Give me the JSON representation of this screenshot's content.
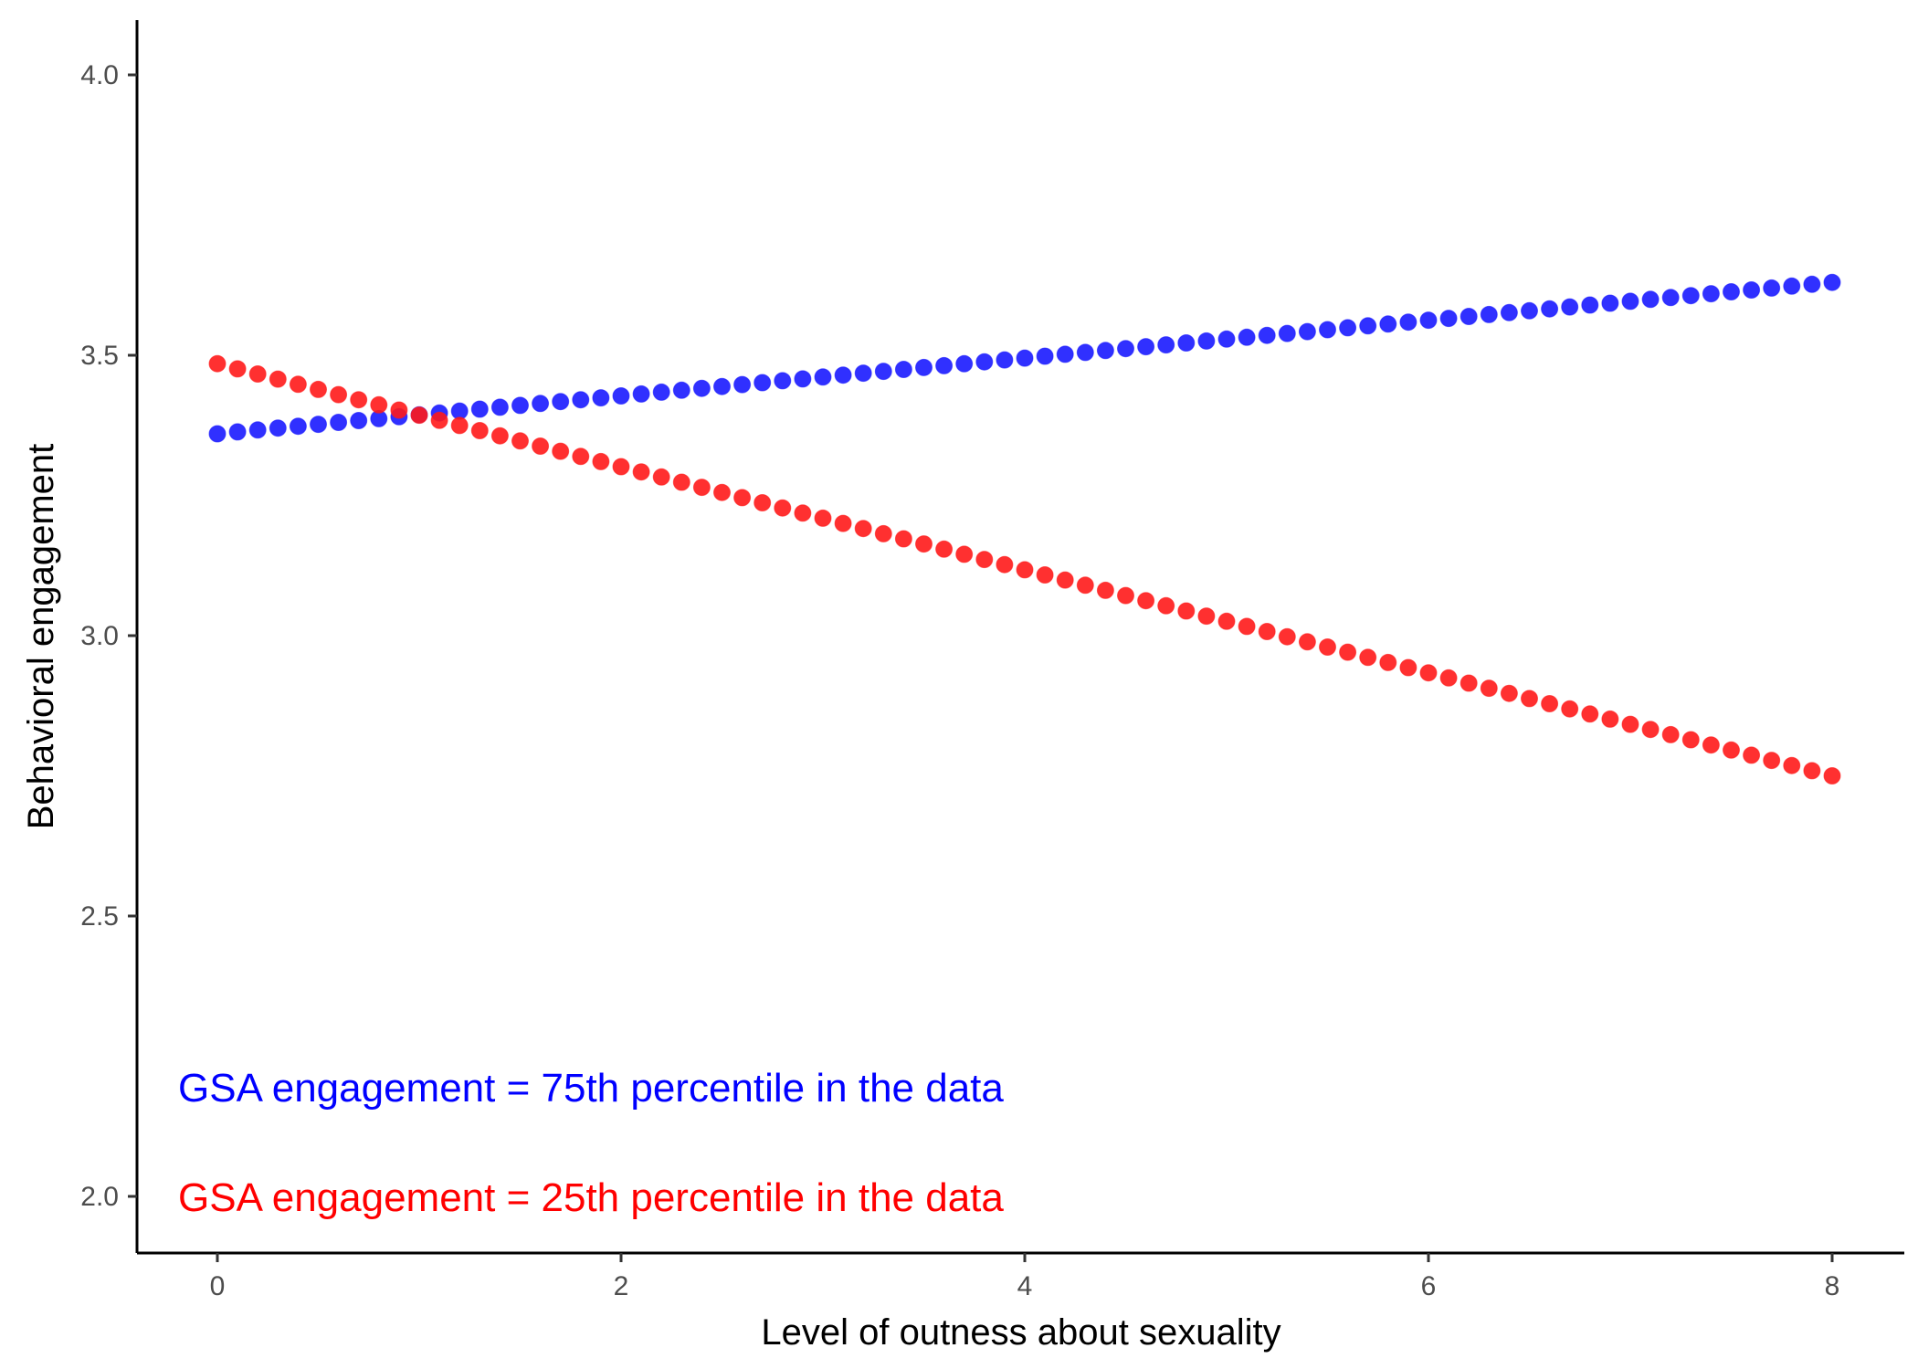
{
  "chart_data": {
    "type": "scatter",
    "title": "",
    "xlabel": "Level of outness about sexuality",
    "ylabel": "Behavioral engagement",
    "xlim": [
      -0.4,
      8.4
    ],
    "ylim": [
      1.9,
      4.1
    ],
    "x_ticks": [
      0,
      2,
      4,
      6,
      8
    ],
    "x_tick_labels": [
      "0",
      "2",
      "4",
      "6",
      "8"
    ],
    "y_ticks": [
      2.0,
      2.5,
      3.0,
      3.5,
      4.0
    ],
    "y_tick_labels": [
      "2.0",
      "2.5",
      "3.0",
      "3.5",
      "4.0"
    ],
    "grid": false,
    "x": {
      "start": 0,
      "end": 8,
      "step": 0.1
    },
    "series": [
      {
        "start_y": 3.36,
        "end_y": 3.63,
        "color": "#1a1aff"
      },
      {
        "start_y": 3.485,
        "end_y": 2.75,
        "color": "#ff1a1a"
      }
    ],
    "annotations": [
      {
        "text": "GSA engagement = 75th percentile in the data",
        "color": "#0000ff"
      },
      {
        "text": "GSA engagement = 25th percentile in the data",
        "color": "#ff0000"
      }
    ]
  }
}
